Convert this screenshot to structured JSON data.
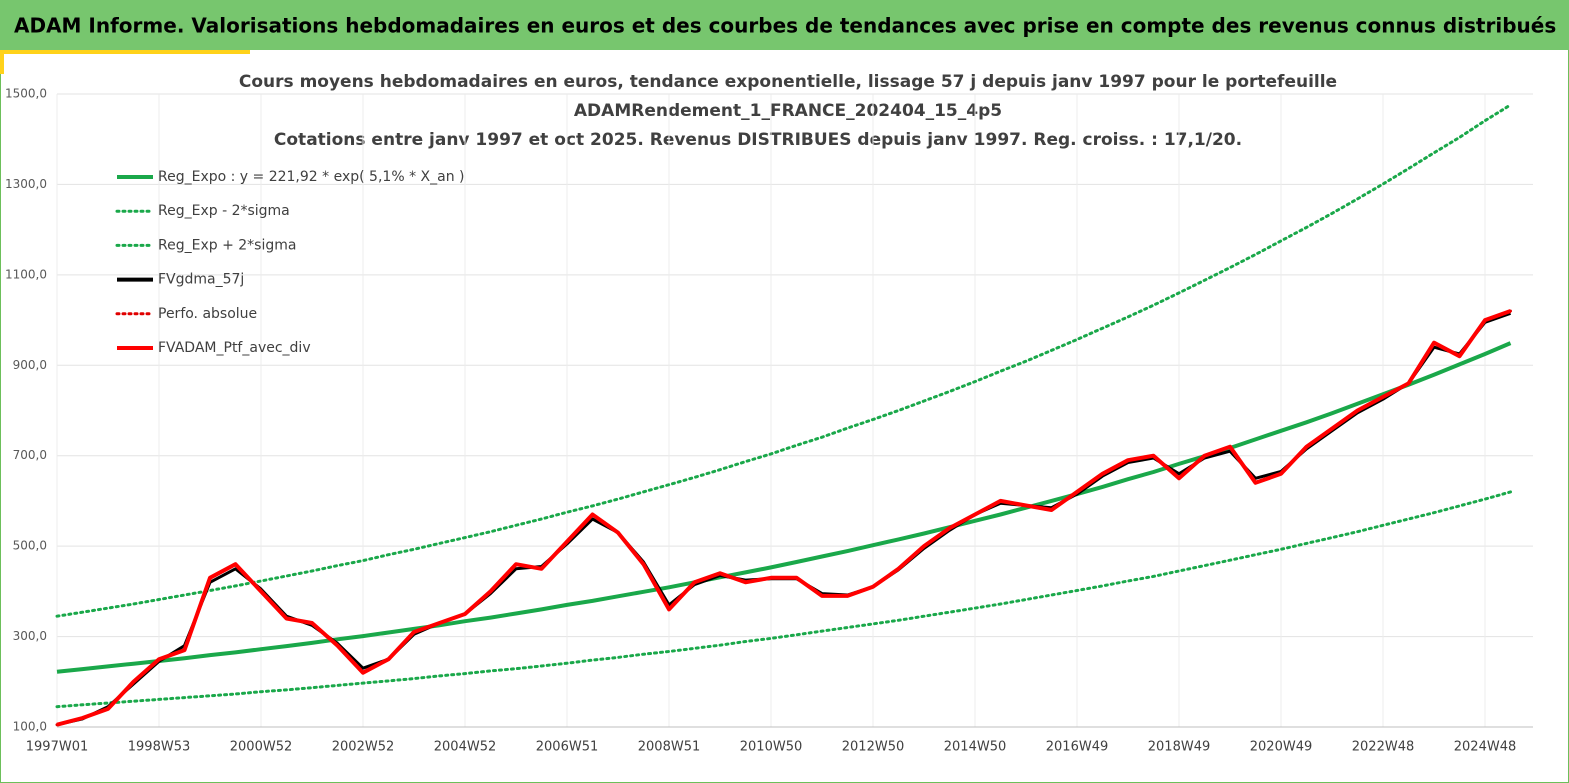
{
  "chart_data": {
    "type": "line",
    "banner": "ADAM Informe. Valorisations hebdomadaires en euros et des courbes de tendances avec prise en compte des revenus connus distribués",
    "title": [
      "Cours moyens hebdomadaires  en euros, tendance exponentielle, lissage 57 j depuis janv 1997 pour le portefeuille",
      "ADAMRendement_1_FRANCE_202404_15_4p5",
      "Cotations  entre janv 1997 et oct 2025. Revenus DISTRIBUES depuis janv 1997. Reg. croiss. : 17,1/20."
    ],
    "categories": [
      "1997W01",
      null,
      null,
      null,
      "1998W53",
      null,
      null,
      null,
      "2000W52",
      null,
      null,
      null,
      "2002W52",
      null,
      null,
      null,
      "2004W52",
      null,
      null,
      null,
      "2006W51",
      null,
      null,
      null,
      "2008W51",
      null,
      null,
      null,
      "2010W50",
      null,
      null,
      null,
      "2012W50",
      null,
      null,
      null,
      "2014W50",
      null,
      null,
      null,
      "2016W49",
      null,
      null,
      null,
      "2018W49",
      null,
      null,
      null,
      "2020W49",
      null,
      null,
      null,
      "2022W48",
      null,
      null,
      null,
      "2024W48",
      null
    ],
    "ylim": [
      100,
      1500
    ],
    "yticks": [
      {
        "value": 100,
        "label": "100,0"
      },
      {
        "value": 300,
        "label": "300,0"
      },
      {
        "value": 500,
        "label": "500,0"
      },
      {
        "value": 700,
        "label": "700,0"
      },
      {
        "value": 900,
        "label": "900,0"
      },
      {
        "value": 1100,
        "label": "1100,0"
      },
      {
        "value": 1300,
        "label": "1300,0"
      },
      {
        "value": 1500,
        "label": "1500,0"
      }
    ],
    "grid": true,
    "legend": "upper left",
    "series": [
      {
        "name": "Reg_Expo : y = 221,92 * exp( 5,1% *  X_an )",
        "color": "#1aa84a",
        "style": "solid",
        "values": [
          222,
          228,
          234,
          240,
          246,
          252,
          259,
          265,
          272,
          279,
          286,
          294,
          301,
          309,
          317,
          325,
          334,
          342,
          351,
          360,
          370,
          379,
          389,
          399,
          409,
          420,
          431,
          442,
          453,
          465,
          477,
          489,
          502,
          515,
          528,
          542,
          556,
          570,
          585,
          600,
          615,
          631,
          648,
          664,
          682,
          699,
          717,
          736,
          755,
          774,
          794,
          815,
          836,
          857,
          879,
          902,
          925,
          949
        ]
      },
      {
        "name": "Reg_Exp - 2*sigma",
        "color": "#1aa84a",
        "style": "dotted",
        "values": [
          145,
          149,
          153,
          157,
          161,
          165,
          169,
          173,
          178,
          182,
          187,
          192,
          197,
          202,
          207,
          213,
          218,
          224,
          229,
          235,
          241,
          248,
          254,
          261,
          267,
          274,
          281,
          289,
          296,
          304,
          312,
          320,
          328,
          336,
          345,
          354,
          363,
          372,
          382,
          392,
          402,
          412,
          423,
          433,
          445,
          457,
          469,
          481,
          493,
          506,
          519,
          532,
          546,
          560,
          574,
          589,
          604,
          620
        ]
      },
      {
        "name": "Reg_Exp + 2*sigma",
        "color": "#1aa84a",
        "style": "dotted",
        "values": [
          345,
          354,
          363,
          372,
          382,
          392,
          402,
          412,
          423,
          434,
          445,
          457,
          468,
          481,
          493,
          506,
          519,
          532,
          546,
          560,
          575,
          589,
          604,
          620,
          636,
          652,
          669,
          687,
          704,
          723,
          741,
          761,
          780,
          800,
          821,
          842,
          864,
          887,
          909,
          933,
          957,
          982,
          1007,
          1033,
          1060,
          1088,
          1116,
          1145,
          1175,
          1205,
          1236,
          1268,
          1301,
          1335,
          1370,
          1404,
          1441,
          1476
        ]
      },
      {
        "name": "FVgdma_57j",
        "color": "#000000",
        "style": "solid",
        "values": [
          105,
          118,
          145,
          195,
          245,
          280,
          420,
          450,
          405,
          345,
          325,
          285,
          230,
          250,
          305,
          330,
          350,
          395,
          450,
          455,
          505,
          560,
          530,
          465,
          370,
          415,
          435,
          425,
          428,
          428,
          395,
          392,
          410,
          448,
          495,
          535,
          570,
          595,
          590,
          585,
          615,
          655,
          685,
          695,
          660,
          695,
          710,
          650,
          665,
          715,
          755,
          795,
          825,
          860,
          940,
          925,
          995,
          1015
        ]
      },
      {
        "name": "Perfo. absolue",
        "color": "#e00000",
        "style": "dotted",
        "values": [
          105,
          120,
          140,
          200,
          250,
          270,
          430,
          460,
          400,
          340,
          330,
          280,
          220,
          250,
          310,
          330,
          350,
          400,
          460,
          450,
          510,
          570,
          530,
          460,
          360,
          420,
          440,
          420,
          430,
          430,
          390,
          390,
          410,
          450,
          500,
          540,
          570,
          600,
          590,
          580,
          620,
          660,
          690,
          700,
          650,
          700,
          720,
          640,
          660,
          720,
          760,
          800,
          830,
          860,
          950,
          920,
          1000,
          1020
        ]
      },
      {
        "name": "FVADAM_Ptf_avec_div",
        "color": "#ff0000",
        "style": "solid",
        "values": [
          105,
          120,
          140,
          200,
          250,
          270,
          430,
          460,
          400,
          340,
          330,
          280,
          220,
          250,
          310,
          330,
          350,
          400,
          460,
          450,
          510,
          570,
          530,
          460,
          360,
          420,
          440,
          420,
          430,
          430,
          390,
          390,
          410,
          450,
          500,
          540,
          570,
          600,
          590,
          580,
          620,
          660,
          690,
          700,
          650,
          700,
          720,
          640,
          660,
          720,
          760,
          800,
          830,
          860,
          950,
          920,
          1000,
          1020
        ]
      }
    ]
  }
}
